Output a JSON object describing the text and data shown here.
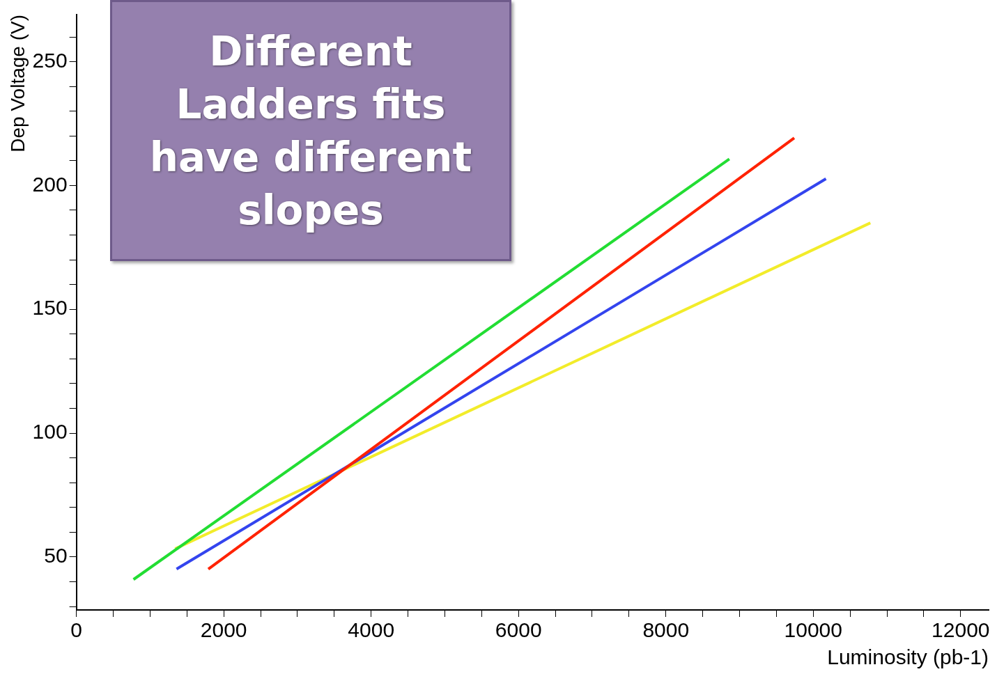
{
  "chart_data": {
    "type": "line",
    "xlabel": "Luminosity (pb-1)",
    "ylabel": "Dep Voltage (V)",
    "annotations": [
      "Different Ladders fits have different slopes"
    ],
    "xlim": [
      0,
      12380
    ],
    "ylim": [
      28.6,
      269
    ],
    "xticks": [
      0,
      {
        "value": 500,
        "label": null
      },
      2000,
      {
        "value": 1000,
        "label": null
      },
      {
        "value": 1500,
        "label": null
      },
      {
        "value": 2500,
        "label": null
      },
      {
        "value": 3000,
        "label": null
      },
      {
        "value": 3500,
        "label": null
      },
      4000,
      {
        "value": 4500,
        "label": null
      },
      {
        "value": 5000,
        "label": null
      },
      {
        "value": 5500,
        "label": null
      },
      6000,
      {
        "value": 6500,
        "label": null
      },
      {
        "value": 7000,
        "label": null
      },
      {
        "value": 7500,
        "label": null
      },
      8000,
      {
        "value": 8500,
        "label": null
      },
      {
        "value": 9000,
        "label": null
      },
      {
        "value": 9500,
        "label": null
      },
      10000,
      {
        "value": 10500,
        "label": null
      },
      {
        "value": 11000,
        "label": null
      },
      {
        "value": 11500,
        "label": null
      },
      12000
    ],
    "yticks": [
      {
        "value": 30,
        "label": null
      },
      {
        "value": 40,
        "label": null
      },
      50,
      {
        "value": 60,
        "label": null
      },
      {
        "value": 70,
        "label": null
      },
      {
        "value": 80,
        "label": null
      },
      {
        "value": 90,
        "label": null
      },
      100,
      {
        "value": 110,
        "label": null
      },
      {
        "value": 120,
        "label": null
      },
      {
        "value": 130,
        "label": null
      },
      {
        "value": 140,
        "label": null
      },
      150,
      {
        "value": 160,
        "label": null
      },
      {
        "value": 170,
        "label": null
      },
      {
        "value": 180,
        "label": null
      },
      {
        "value": 190,
        "label": null
      },
      200,
      {
        "value": 210,
        "label": null
      },
      {
        "value": 220,
        "label": null
      },
      {
        "value": 230,
        "label": null
      },
      {
        "value": 240,
        "label": null
      },
      250,
      {
        "value": 260,
        "label": null
      }
    ],
    "grid": false,
    "legend": false,
    "marker": "none",
    "line_style": "solid",
    "series": [
      {
        "color": "#22dd33",
        "x": [
          775,
          8861
        ],
        "values": [
          40.9,
          210.7
        ]
      },
      {
        "color": "#ff2200",
        "x": [
          1790,
          9742
        ],
        "values": [
          45.1,
          219.2
        ]
      },
      {
        "color": "#3344ee",
        "x": [
          1359,
          10172
        ],
        "values": [
          45.1,
          202.7
        ]
      },
      {
        "color": "#f2ec2a",
        "x": [
          1340,
          10775
        ],
        "values": [
          53.3,
          184.9
        ]
      }
    ]
  }
}
